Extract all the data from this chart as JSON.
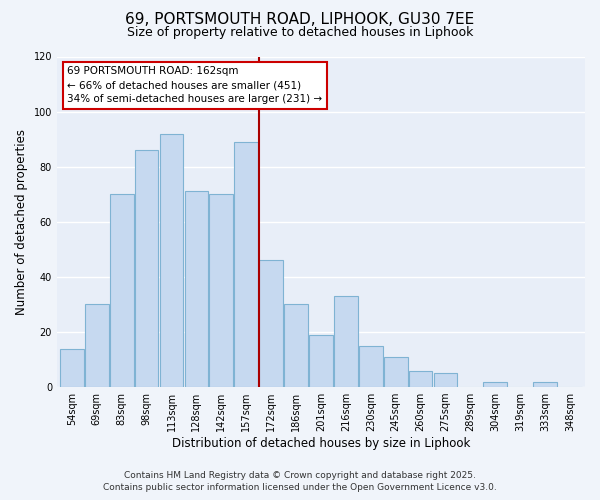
{
  "title": "69, PORTSMOUTH ROAD, LIPHOOK, GU30 7EE",
  "subtitle": "Size of property relative to detached houses in Liphook",
  "xlabel": "Distribution of detached houses by size in Liphook",
  "ylabel": "Number of detached properties",
  "categories": [
    "54sqm",
    "69sqm",
    "83sqm",
    "98sqm",
    "113sqm",
    "128sqm",
    "142sqm",
    "157sqm",
    "172sqm",
    "186sqm",
    "201sqm",
    "216sqm",
    "230sqm",
    "245sqm",
    "260sqm",
    "275sqm",
    "289sqm",
    "304sqm",
    "319sqm",
    "333sqm",
    "348sqm"
  ],
  "values": [
    14,
    30,
    70,
    86,
    92,
    71,
    70,
    89,
    46,
    30,
    19,
    33,
    15,
    11,
    6,
    5,
    0,
    2,
    0,
    2,
    0
  ],
  "bar_color": "#c6d9f0",
  "bar_edge_color": "#7fb3d3",
  "vline_x": 7.5,
  "vline_color": "#aa0000",
  "annotation_title": "69 PORTSMOUTH ROAD: 162sqm",
  "annotation_line1": "← 66% of detached houses are smaller (451)",
  "annotation_line2": "34% of semi-detached houses are larger (231) →",
  "annotation_box_facecolor": "#ffffff",
  "annotation_box_edgecolor": "#cc0000",
  "ylim": [
    0,
    120
  ],
  "yticks": [
    0,
    20,
    40,
    60,
    80,
    100,
    120
  ],
  "footnote1": "Contains HM Land Registry data © Crown copyright and database right 2025.",
  "footnote2": "Contains public sector information licensed under the Open Government Licence v3.0.",
  "bg_color": "#f0f4fa",
  "plot_bg_color": "#e8eef8",
  "grid_color": "#ffffff",
  "title_fontsize": 11,
  "subtitle_fontsize": 9,
  "axis_label_fontsize": 8.5,
  "tick_fontsize": 7,
  "annotation_fontsize": 7.5,
  "footnote_fontsize": 6.5
}
